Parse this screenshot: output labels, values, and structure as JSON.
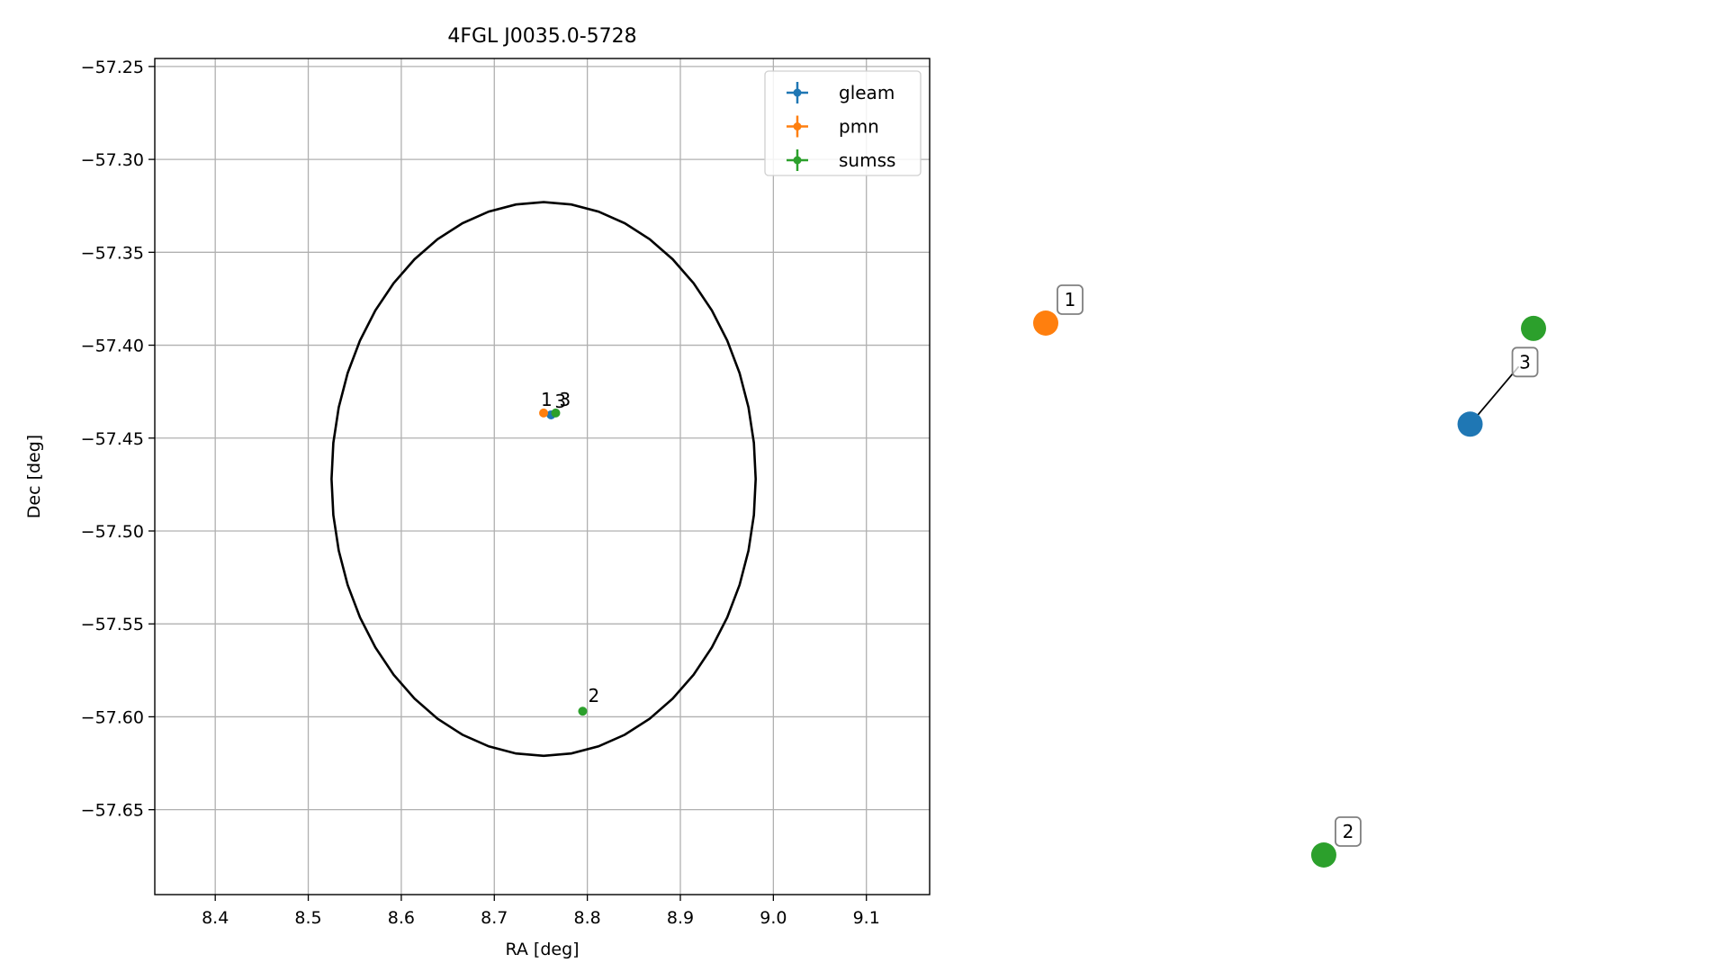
{
  "chart_data": [
    {
      "type": "scatter",
      "title": "4FGL J0035.0-5728",
      "xlabel": "RA [deg]",
      "ylabel": "Dec [deg]",
      "xlim": [
        8.335,
        9.168
      ],
      "ylim": [
        -57.6957,
        -57.2457
      ],
      "xticks": [
        8.4,
        8.5,
        8.6,
        8.7,
        8.8,
        8.9,
        9.0,
        9.1
      ],
      "xtick_labels": [
        "8.4",
        "8.5",
        "8.6",
        "8.7",
        "8.8",
        "8.9",
        "9.0",
        "9.1"
      ],
      "yticks": [
        -57.25,
        -57.3,
        -57.35,
        -57.4,
        -57.45,
        -57.5,
        -57.55,
        -57.6,
        -57.65
      ],
      "ytick_labels": [
        "−57.25",
        "−57.30",
        "−57.35",
        "−57.40",
        "−57.45",
        "−57.50",
        "−57.55",
        "−57.60",
        "−57.65"
      ],
      "grid": true,
      "legend_position": "top-right",
      "ellipse": {
        "center": [
          8.753,
          -57.472
        ],
        "semi_axis_ra": 0.228,
        "semi_axis_dec": 0.149,
        "color": "#000000"
      },
      "series": [
        {
          "name": "gleam",
          "color": "#1f77b4",
          "points": [
            {
              "x": 8.761,
              "y": -57.4375,
              "label": "3"
            }
          ]
        },
        {
          "name": "pmn",
          "color": "#ff7f0e",
          "points": [
            {
              "x": 8.753,
              "y": -57.4365,
              "label": "1"
            }
          ]
        },
        {
          "name": "sumss",
          "color": "#2ca02c",
          "points": [
            {
              "x": 8.766,
              "y": -57.4365,
              "label": "3"
            },
            {
              "x": 8.795,
              "y": -57.597,
              "label": "2"
            }
          ]
        }
      ]
    },
    {
      "type": "scatter",
      "title": "",
      "points": [
        {
          "x": 0.0,
          "y": 1.0,
          "color": "#ff7f0e",
          "label": "1"
        },
        {
          "x": 0.57,
          "y": 0.0,
          "color": "#2ca02c",
          "label": "2"
        },
        {
          "x": 0.87,
          "y": 0.81,
          "color": "#1f77b4",
          "label": "3"
        },
        {
          "x": 1.0,
          "y": 0.99,
          "color": "#2ca02c",
          "label": ""
        }
      ]
    }
  ]
}
